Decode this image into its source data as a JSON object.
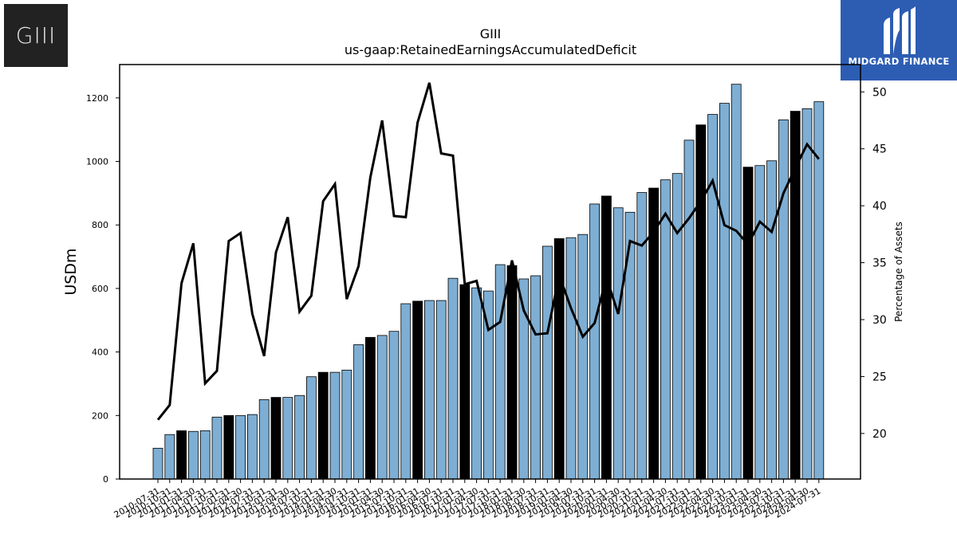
{
  "logo_left": {
    "text": "GIII"
  },
  "logo_right": {
    "brand": "MIDGARD FINANCE",
    "color": "#2d5db3"
  },
  "chart_data": {
    "type": "bar",
    "title": "GIII",
    "subtitle": "us-gaap:RetainedEarningsAccumulatedDeficit",
    "ylabel": "USDm",
    "y2label": "Percentage of Assets",
    "ylim": [
      0,
      1305
    ],
    "y2lim": [
      16.0,
      52.4
    ],
    "yticks": [
      0,
      200,
      400,
      600,
      800,
      1000,
      1200
    ],
    "y2ticks": [
      20,
      25,
      30,
      35,
      40,
      45,
      50
    ],
    "bar_color": "#7eaed3",
    "highlight_color": "#000000",
    "line_color": "#000000",
    "categories": [
      "2010-07-31",
      "2010-10-31",
      "2011-01-31",
      "2011-04-30",
      "2011-07-31",
      "2011-10-31",
      "2012-01-31",
      "2012-04-30",
      "2012-07-31",
      "2012-10-31",
      "2013-01-31",
      "2013-04-30",
      "2013-07-31",
      "2013-10-31",
      "2014-01-31",
      "2014-04-30",
      "2014-07-31",
      "2014-10-31",
      "2015-01-31",
      "2015-04-30",
      "2015-07-31",
      "2015-10-31",
      "2016-01-31",
      "2016-04-30",
      "2016-07-31",
      "2016-10-31",
      "2017-01-31",
      "2017-04-30",
      "2017-07-31",
      "2017-10-31",
      "2018-01-31",
      "2018-04-30",
      "2018-07-31",
      "2018-10-31",
      "2019-01-31",
      "2019-04-30",
      "2019-07-31",
      "2019-10-31",
      "2020-01-31",
      "2020-04-30",
      "2020-07-31",
      "2020-10-31",
      "2021-01-31",
      "2021-04-30",
      "2021-07-31",
      "2021-10-31",
      "2022-01-31",
      "2022-04-30",
      "2022-07-31",
      "2022-10-31",
      "2023-01-31",
      "2023-04-30",
      "2023-07-31",
      "2023-10-31",
      "2024-01-31",
      "2024-04-30",
      "2024-07-31"
    ],
    "values": [
      97,
      140,
      152,
      150,
      152,
      195,
      200,
      200,
      203,
      250,
      257,
      257,
      263,
      322,
      336,
      336,
      343,
      423,
      446,
      452,
      465,
      552,
      560,
      562,
      562,
      632,
      612,
      602,
      592,
      675,
      672,
      630,
      640,
      733,
      757,
      760,
      770,
      866,
      891,
      854,
      840,
      902,
      916,
      942,
      962,
      1067,
      1115,
      1148,
      1183,
      1243,
      982,
      987,
      1002,
      1131,
      1158,
      1166,
      1188
    ],
    "highlight": [
      false,
      false,
      true,
      false,
      false,
      false,
      true,
      false,
      false,
      false,
      true,
      false,
      false,
      false,
      true,
      false,
      false,
      false,
      true,
      false,
      false,
      false,
      true,
      false,
      false,
      false,
      true,
      false,
      false,
      false,
      true,
      false,
      false,
      false,
      true,
      false,
      false,
      false,
      true,
      false,
      false,
      false,
      true,
      false,
      false,
      false,
      true,
      false,
      false,
      false,
      true,
      false,
      false,
      false,
      true,
      false,
      false
    ],
    "line_values": [
      21.2,
      22.5,
      33.2,
      36.7,
      24.4,
      25.5,
      36.9,
      37.6,
      30.5,
      26.8,
      35.9,
      39.0,
      30.7,
      32.1,
      40.4,
      41.9,
      31.8,
      34.7,
      42.5,
      47.5,
      39.1,
      39.0,
      47.3,
      50.8,
      44.6,
      44.4,
      33.1,
      33.4,
      29.1,
      29.8,
      35.2,
      30.8,
      28.7,
      28.8,
      33.9,
      31.0,
      28.5,
      29.7,
      33.7,
      30.5,
      36.9,
      36.5,
      37.7,
      39.3,
      37.6,
      38.9,
      40.4,
      42.2,
      38.3,
      37.8,
      36.6,
      38.6,
      37.7,
      41.1,
      43.3,
      45.4,
      44.1
    ]
  }
}
